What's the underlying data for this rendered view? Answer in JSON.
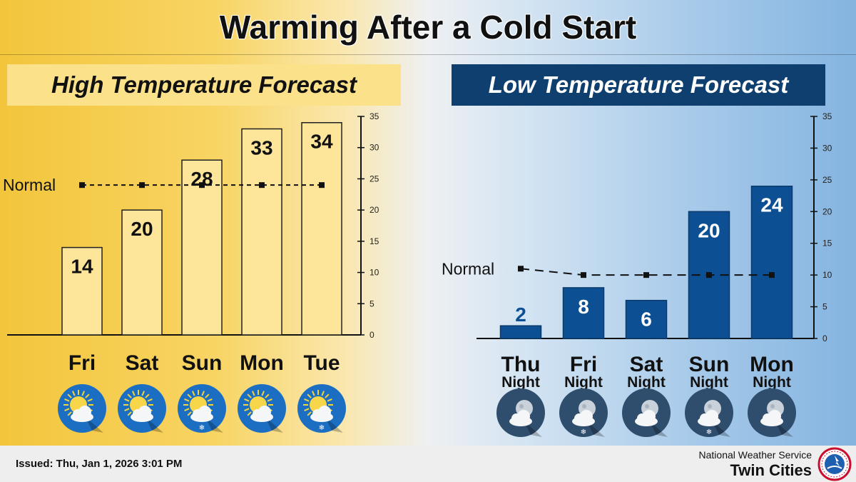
{
  "title": "Warming After a Cold Start",
  "issued": "Issued: Thu, Jan 1, 2026 3:01 PM",
  "office": {
    "line1": "National Weather Service",
    "line2": "Twin Cities"
  },
  "colors": {
    "high_bar_fill": "#fde599",
    "low_bar_fill": "#0d4f93",
    "low_title_bg": "#0e3f6e",
    "high_title_bg": "#fbe18a"
  },
  "chart_data": [
    {
      "type": "bar",
      "title": "High Temperature Forecast",
      "categories": [
        "Fri",
        "Sat",
        "Sun",
        "Mon",
        "Tue"
      ],
      "sublabels": [
        "",
        "",
        "",
        "",
        ""
      ],
      "values": [
        14,
        20,
        28,
        33,
        34
      ],
      "normal_label": "Normal",
      "normal": [
        24,
        24,
        24,
        24,
        24
      ],
      "ylim": [
        0,
        35
      ],
      "yticks": [
        0,
        5,
        10,
        15,
        20,
        25,
        30,
        35
      ],
      "grid": false,
      "icons": [
        "partly-sunny-icon",
        "partly-sunny-icon",
        "partly-sunny-snow-icon",
        "partly-sunny-icon",
        "partly-sunny-snow-icon"
      ]
    },
    {
      "type": "bar",
      "title": "Low Temperature Forecast",
      "categories": [
        "Thu",
        "Fri",
        "Sat",
        "Sun",
        "Mon"
      ],
      "sublabels": [
        "Night",
        "Night",
        "Night",
        "Night",
        "Night"
      ],
      "values": [
        2,
        8,
        6,
        20,
        24
      ],
      "normal_label": "Normal",
      "normal": [
        11,
        10,
        10,
        10,
        10
      ],
      "ylim": [
        0,
        35
      ],
      "yticks": [
        0,
        5,
        10,
        15,
        20,
        25,
        30,
        35
      ],
      "grid": false,
      "icons": [
        "partly-cloudy-night-icon",
        "cloudy-night-snow-icon",
        "partly-cloudy-night-icon",
        "cloudy-night-snow-icon",
        "cloudy-night-icon"
      ]
    }
  ]
}
